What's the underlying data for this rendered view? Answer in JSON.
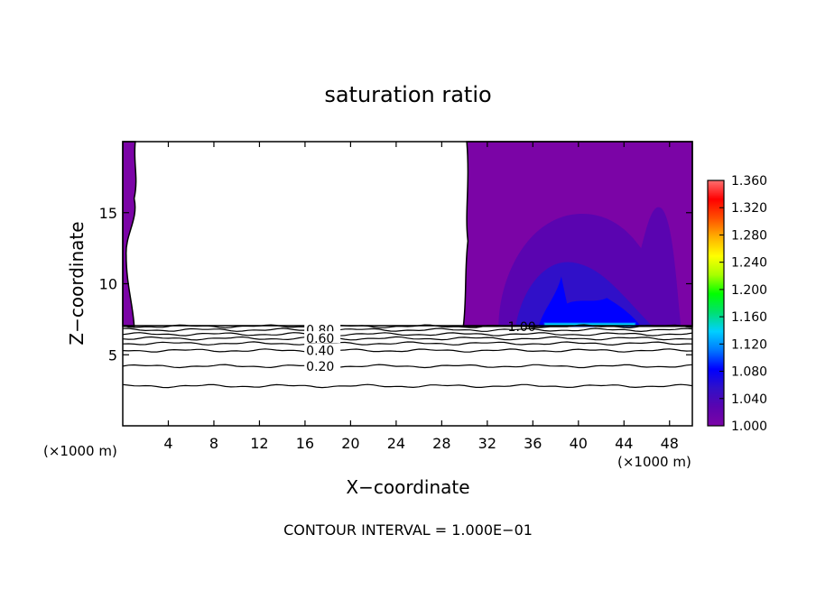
{
  "chart_data": {
    "type": "heatmap",
    "title": "saturation ratio",
    "xlabel": "X−coordinate",
    "ylabel": "Z−coordinate",
    "x_unit_left": "(×1000 m)",
    "x_unit_right": "(×1000 m)",
    "footer": "CONTOUR INTERVAL = 1.000E−01",
    "xlim": [
      0,
      50
    ],
    "ylim": [
      0,
      20
    ],
    "x_ticks": [
      4,
      8,
      12,
      16,
      20,
      24,
      28,
      32,
      36,
      40,
      44,
      48
    ],
    "y_ticks": [
      5,
      10,
      15
    ],
    "colorbar": {
      "min": 1.0,
      "max": 1.36,
      "ticks": [
        "1.360",
        "1.320",
        "1.280",
        "1.240",
        "1.200",
        "1.160",
        "1.120",
        "1.080",
        "1.040",
        "1.000"
      ],
      "colors": [
        "#7b04a6",
        "#5a04b0",
        "#3010c8",
        "#0000ff",
        "#0078ff",
        "#00d0ff",
        "#00e070",
        "#00ff00",
        "#a8ff00",
        "#ffff00",
        "#ffb000",
        "#ff5000",
        "#ff0000",
        "#ff7070"
      ]
    },
    "contour_labels": [
      "0.80",
      "0.60",
      "0.40",
      "0.20",
      "1.00"
    ],
    "contour_lines": [
      {
        "value": 0.2,
        "z": 4.2
      },
      {
        "value": 0.1,
        "z": 2.8
      },
      {
        "value": 0.4,
        "z": 5.3
      },
      {
        "value": 0.5,
        "z": 5.8
      },
      {
        "value": 0.6,
        "z": 6.15
      },
      {
        "value": 0.7,
        "z": 6.45
      },
      {
        "value": 0.8,
        "z": 6.75
      },
      {
        "value": 0.9,
        "z": 7.0
      }
    ],
    "label_positions": {
      "0.80": [
        16.1,
        6.75
      ],
      "0.60": [
        16.1,
        6.15
      ],
      "0.40": [
        16.1,
        5.3
      ],
      "0.20": [
        16.1,
        4.2
      ],
      "1.00": [
        33.8,
        7.0
      ]
    }
  }
}
